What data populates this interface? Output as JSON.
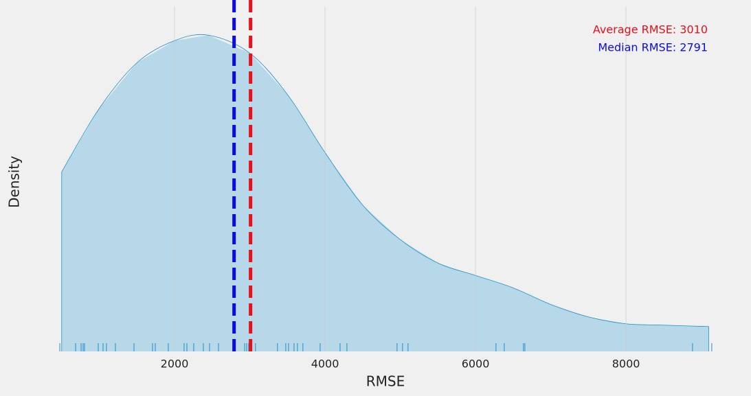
{
  "chart_data": {
    "type": "density",
    "xlabel": "RMSE",
    "ylabel": "Density",
    "xlim": [
      470,
      9150
    ],
    "xticks": [
      2000,
      4000,
      6000,
      8000
    ],
    "ylim": [
      0,
      0.00025
    ],
    "grid": true,
    "series": [
      {
        "color": "#1f8fc9",
        "fill": "#b2d6e8",
        "x": [
          500,
          1000,
          1500,
          2000,
          2450,
          3000,
          3500,
          4000,
          4500,
          5000,
          5500,
          6000,
          6500,
          7000,
          7500,
          8000,
          8500,
          9100
        ],
        "values": [
          0.00013,
          0.000176,
          0.000209,
          0.000225,
          0.000229,
          0.000216,
          0.000186,
          0.000144,
          0.000106,
          8.1e-05,
          6.4e-05,
          5.5e-05,
          4.6e-05,
          3.4e-05,
          2.5e-05,
          2e-05,
          1.9e-05,
          1.8e-05
        ]
      }
    ],
    "rug": [
      475,
      685,
      758,
      785,
      803,
      986,
      1050,
      1095,
      1214,
      1461,
      1707,
      1744,
      1917,
      2127,
      2164,
      2255,
      2383,
      2465,
      2584,
      2803,
      2931,
      2958,
      2985,
      3022,
      3076,
      3368,
      3478,
      3515,
      3588,
      3633,
      3706,
      3935,
      4200,
      4291,
      4957,
      5030,
      5103,
      6272,
      6382,
      6637,
      6656,
      8884,
      9140
    ],
    "reference_lines": [
      {
        "value": 3010,
        "color": "#e8101a",
        "label": "Average RMSE: 3010"
      },
      {
        "value": 2791,
        "color": "#0c0ce0",
        "label": "Median RMSE: 2791"
      }
    ]
  }
}
